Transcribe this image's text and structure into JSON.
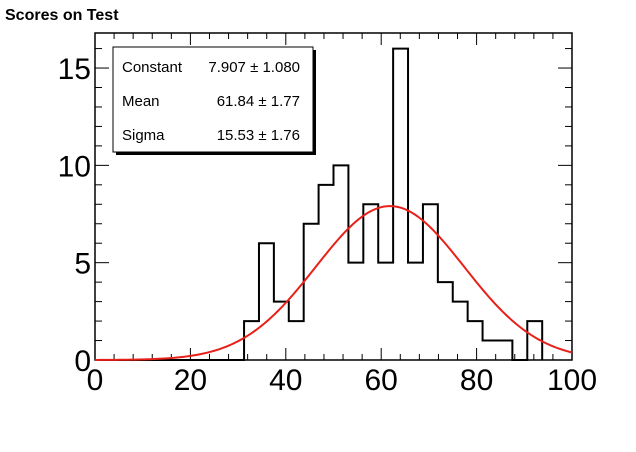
{
  "title": "Scores on Test",
  "stats_box": {
    "rows": [
      {
        "label": "Constant",
        "value": "7.907 ± 1.080"
      },
      {
        "label": "Mean",
        "value": "61.84 ± 1.77"
      },
      {
        "label": "Sigma",
        "value": "15.53 ± 1.76"
      }
    ]
  },
  "chart_data": {
    "type": "bar",
    "title": "Scores on Test",
    "xlabel": "",
    "ylabel": "",
    "xlim": [
      0,
      100
    ],
    "ylim": [
      0,
      16.8
    ],
    "grid": false,
    "x_ticks": [
      0,
      20,
      40,
      60,
      80,
      100
    ],
    "y_ticks": [
      0,
      5,
      10,
      15
    ],
    "bin_width": 3.125,
    "bin_edges_start": 0,
    "bin_counts": [
      0,
      0,
      0,
      0,
      0,
      0,
      0,
      0,
      0,
      0,
      2,
      6,
      3,
      2,
      7,
      9,
      10,
      5,
      8,
      5,
      16,
      5,
      8,
      4,
      3,
      2,
      1,
      1,
      0,
      2
    ],
    "histogram_color": "#000000",
    "fit": {
      "type": "gaussian",
      "constant": 7.907,
      "mean": 61.84,
      "sigma": 15.53,
      "color": "#e8201a"
    }
  }
}
